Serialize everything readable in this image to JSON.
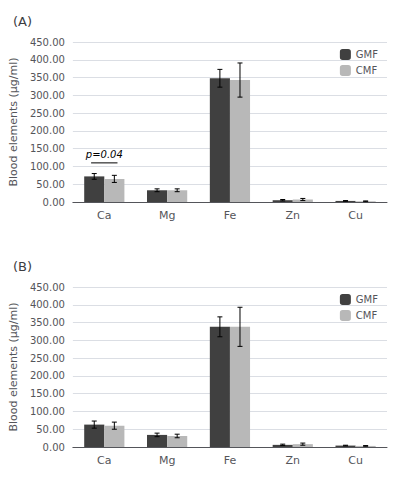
{
  "chart_data": [
    {
      "type": "bar",
      "title": "(A)",
      "categories": [
        "Ca",
        "Mg",
        "Fe",
        "Zn",
        "Cu"
      ],
      "series": [
        {
          "name": "GMF",
          "color": "#404040",
          "values": [
            72,
            33,
            348,
            5,
            3
          ],
          "errors": [
            8,
            4,
            25,
            2,
            1
          ]
        },
        {
          "name": "CMF",
          "color": "#b8b8b8",
          "values": [
            65,
            33,
            343,
            7,
            2
          ],
          "errors": [
            10,
            4,
            48,
            3,
            1
          ]
        }
      ],
      "y_label": "Blood elements (µg/ml)",
      "ylim": [
        0,
        450
      ],
      "yticks": [
        {
          "value": 0,
          "label": "0.00"
        },
        {
          "value": 50,
          "label": "50.00"
        },
        {
          "value": 100,
          "label": "100.00"
        },
        {
          "value": 150,
          "label": "150.00"
        },
        {
          "value": 200,
          "label": "200.00"
        },
        {
          "value": 250,
          "label": "250.00"
        },
        {
          "value": 300,
          "label": "300.00"
        },
        {
          "value": 350,
          "label": "350.00"
        },
        {
          "value": 400,
          "label": "400.00"
        },
        {
          "value": 450,
          "label": "450.00"
        }
      ],
      "annotations": [
        {
          "text": "p=0.04",
          "x": "Ca",
          "y": 110
        }
      ],
      "grid": true,
      "legend": "right"
    },
    {
      "type": "bar",
      "title": "(B)",
      "categories": [
        "Ca",
        "Mg",
        "Fe",
        "Zn",
        "Cu"
      ],
      "series": [
        {
          "name": "GMF",
          "color": "#404040",
          "values": [
            63,
            34,
            338,
            6,
            4
          ],
          "errors": [
            10,
            5,
            28,
            2,
            1
          ]
        },
        {
          "name": "CMF",
          "color": "#b8b8b8",
          "values": [
            60,
            31,
            338,
            8,
            3
          ],
          "errors": [
            10,
            5,
            55,
            3,
            1
          ]
        }
      ],
      "y_label": "Blood elements (µg/ml)",
      "ylim": [
        0,
        450
      ],
      "yticks": [
        {
          "value": 0,
          "label": "0.00"
        },
        {
          "value": 50,
          "label": "50.00"
        },
        {
          "value": 100,
          "label": "100.00"
        },
        {
          "value": 150,
          "label": "150.00"
        },
        {
          "value": 200,
          "label": "200.00"
        },
        {
          "value": 250,
          "label": "250.00"
        },
        {
          "value": 300,
          "label": "300.00"
        },
        {
          "value": 350,
          "label": "350.00"
        },
        {
          "value": 400,
          "label": "400.00"
        },
        {
          "value": 450,
          "label": "450.00"
        }
      ],
      "grid": true,
      "legend": "right"
    }
  ]
}
